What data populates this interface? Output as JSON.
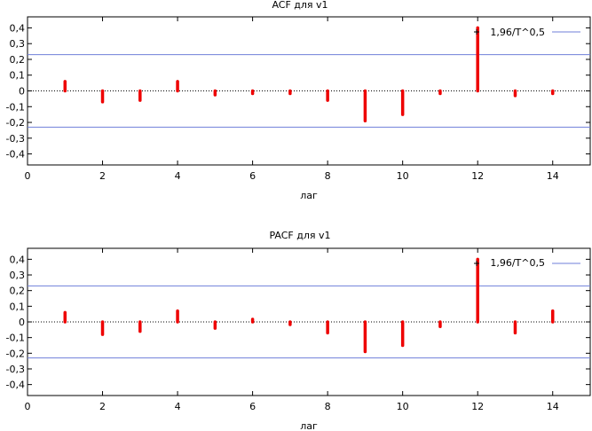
{
  "chart_data": [
    {
      "type": "bar",
      "title": "ACF для v1",
      "xlabel": "лаг",
      "ylabel": "",
      "xlim": [
        0,
        15
      ],
      "ylim": [
        -0.47,
        0.47
      ],
      "x_ticks": [
        0,
        2,
        4,
        6,
        8,
        10,
        12,
        14
      ],
      "y_ticks": [
        -0.4,
        -0.3,
        -0.2,
        -0.1,
        0,
        0.1,
        0.2,
        0.3,
        0.4
      ],
      "x_tick_labels": [
        "0",
        "2",
        "4",
        "6",
        "8",
        "10",
        "12",
        "14"
      ],
      "y_tick_labels": [
        "-0,4",
        "-0,3",
        "-0,2",
        "-0,1",
        "0",
        "0,1",
        "0,2",
        "0,3",
        "0,4"
      ],
      "lags": [
        1,
        2,
        3,
        4,
        5,
        6,
        7,
        8,
        9,
        10,
        11,
        12,
        13,
        14
      ],
      "values": [
        0.06,
        -0.07,
        -0.06,
        0.06,
        -0.025,
        -0.01,
        -0.015,
        -0.06,
        -0.19,
        -0.15,
        -0.005,
        0.4,
        -0.03,
        -0.01
      ],
      "bands": [
        0.23,
        -0.23
      ],
      "legend": {
        "label": "1,96/T^0,5",
        "position": "top-right"
      },
      "colors": {
        "bars": "#ee0000",
        "bands": "#6f7fd9",
        "axes": "#000000"
      }
    },
    {
      "type": "bar",
      "title": "PACF для v1",
      "xlabel": "лаг",
      "ylabel": "",
      "xlim": [
        0,
        15
      ],
      "ylim": [
        -0.47,
        0.47
      ],
      "x_ticks": [
        0,
        2,
        4,
        6,
        8,
        10,
        12,
        14
      ],
      "y_ticks": [
        -0.4,
        -0.3,
        -0.2,
        -0.1,
        0,
        0.1,
        0.2,
        0.3,
        0.4
      ],
      "x_tick_labels": [
        "0",
        "2",
        "4",
        "6",
        "8",
        "10",
        "12",
        "14"
      ],
      "y_tick_labels": [
        "-0,4",
        "-0,3",
        "-0,2",
        "-0,1",
        "0",
        "0,1",
        "0,2",
        "0,3",
        "0,4"
      ],
      "lags": [
        1,
        2,
        3,
        4,
        5,
        6,
        7,
        8,
        9,
        10,
        11,
        12,
        13,
        14
      ],
      "values": [
        0.06,
        -0.08,
        -0.06,
        0.07,
        -0.04,
        0.01,
        -0.01,
        -0.07,
        -0.19,
        -0.15,
        -0.03,
        0.4,
        -0.07,
        0.07
      ],
      "bands": [
        0.23,
        -0.23
      ],
      "legend": {
        "label": "1,96/T^0,5",
        "position": "top-right"
      },
      "colors": {
        "bars": "#ee0000",
        "bands": "#6f7fd9",
        "axes": "#000000"
      }
    }
  ]
}
